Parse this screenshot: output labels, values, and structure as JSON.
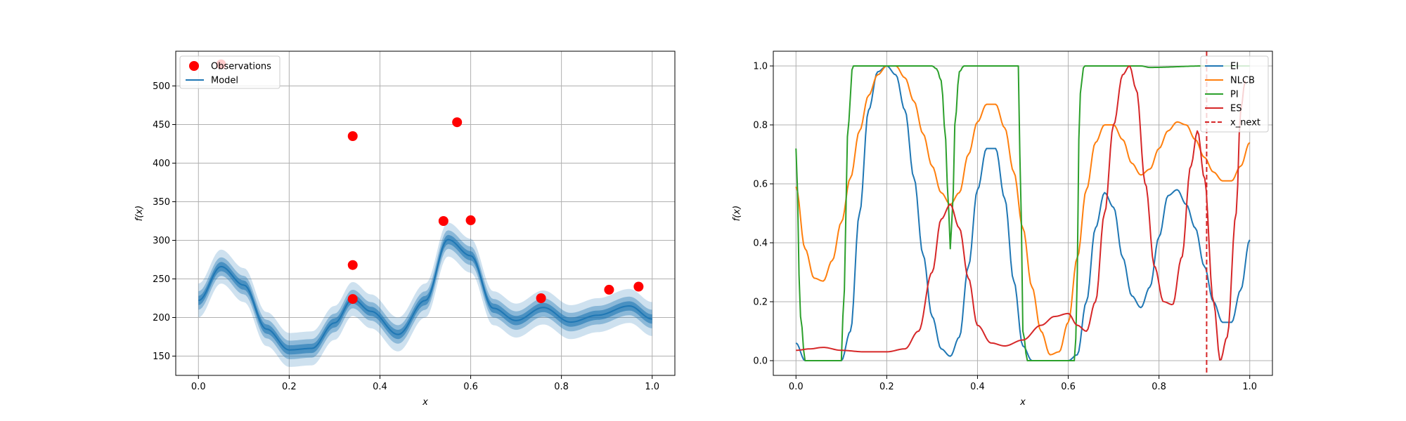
{
  "chart_data": [
    {
      "type": "line",
      "xlabel": "x",
      "ylabel": "f(x)",
      "xlim": [
        -0.05,
        1.05
      ],
      "ylim": [
        125,
        545
      ],
      "xticks": [
        "0.0",
        "0.2",
        "0.4",
        "0.6",
        "0.8",
        "1.0"
      ],
      "yticks": [
        "150",
        "200",
        "250",
        "300",
        "350",
        "400",
        "450",
        "500"
      ],
      "grid": true,
      "legend_placement": "top-left",
      "legend": [
        {
          "label": "Observations",
          "kind": "marker",
          "color": "#ff0000"
        },
        {
          "label": "Model",
          "kind": "line",
          "color": "#1f77b4"
        }
      ],
      "observations": {
        "x": [
          0.05,
          0.34,
          0.34,
          0.34,
          0.54,
          0.57,
          0.6,
          0.755,
          0.905,
          0.97
        ],
        "y": [
          528,
          435,
          268,
          224,
          325,
          453,
          326,
          225,
          236,
          240
        ]
      },
      "model": {
        "x": [
          0.0,
          0.05,
          0.1,
          0.15,
          0.2,
          0.25,
          0.3,
          0.34,
          0.38,
          0.44,
          0.5,
          0.55,
          0.6,
          0.65,
          0.7,
          0.76,
          0.82,
          0.88,
          0.95,
          1.0
        ],
        "mean": [
          222,
          266,
          242,
          185,
          158,
          160,
          193,
          224,
          208,
          178,
          222,
          301,
          280,
          212,
          196,
          213,
          194,
          203,
          215,
          198
        ],
        "band_widths": [
          6,
          12,
          22
        ]
      }
    },
    {
      "type": "line",
      "xlabel": "x",
      "ylabel": "f(x)",
      "xlim": [
        -0.05,
        1.05
      ],
      "ylim": [
        -0.05,
        1.05
      ],
      "xticks": [
        "0.0",
        "0.2",
        "0.4",
        "0.6",
        "0.8",
        "1.0"
      ],
      "yticks": [
        "0.0",
        "0.2",
        "0.4",
        "0.6",
        "0.8",
        "1.0"
      ],
      "grid": true,
      "legend_placement": "top-right",
      "series": [
        {
          "name": "EI",
          "color": "#1f77b4",
          "x": [
            0.0,
            0.02,
            0.04,
            0.06,
            0.08,
            0.1,
            0.12,
            0.14,
            0.16,
            0.18,
            0.2,
            0.22,
            0.24,
            0.26,
            0.28,
            0.3,
            0.32,
            0.34,
            0.36,
            0.38,
            0.4,
            0.42,
            0.44,
            0.46,
            0.48,
            0.5,
            0.52,
            0.54,
            0.56,
            0.58,
            0.6,
            0.62,
            0.64,
            0.66,
            0.68,
            0.7,
            0.72,
            0.74,
            0.76,
            0.78,
            0.8,
            0.82,
            0.84,
            0.86,
            0.88,
            0.9,
            0.92,
            0.94,
            0.96,
            0.98,
            1.0
          ],
          "y": [
            0.06,
            0.0,
            0.0,
            0.0,
            0.0,
            0.0,
            0.1,
            0.5,
            0.85,
            0.98,
            1.0,
            0.97,
            0.85,
            0.62,
            0.36,
            0.15,
            0.04,
            0.015,
            0.08,
            0.32,
            0.58,
            0.72,
            0.72,
            0.55,
            0.27,
            0.05,
            0.0,
            0.0,
            0.0,
            0.0,
            0.0,
            0.02,
            0.2,
            0.45,
            0.57,
            0.52,
            0.35,
            0.22,
            0.18,
            0.25,
            0.42,
            0.56,
            0.58,
            0.53,
            0.45,
            0.32,
            0.2,
            0.13,
            0.13,
            0.24,
            0.41
          ]
        },
        {
          "name": "NLCB",
          "color": "#ff7f0e",
          "x": [
            0.0,
            0.02,
            0.04,
            0.06,
            0.08,
            0.1,
            0.12,
            0.14,
            0.16,
            0.18,
            0.2,
            0.22,
            0.24,
            0.26,
            0.28,
            0.3,
            0.32,
            0.34,
            0.36,
            0.38,
            0.4,
            0.42,
            0.44,
            0.46,
            0.48,
            0.5,
            0.52,
            0.54,
            0.56,
            0.58,
            0.6,
            0.62,
            0.64,
            0.66,
            0.68,
            0.7,
            0.72,
            0.74,
            0.76,
            0.78,
            0.8,
            0.82,
            0.84,
            0.86,
            0.88,
            0.9,
            0.92,
            0.94,
            0.96,
            0.98,
            1.0
          ],
          "y": [
            0.59,
            0.38,
            0.28,
            0.27,
            0.34,
            0.47,
            0.62,
            0.78,
            0.9,
            0.97,
            1.0,
            1.0,
            0.96,
            0.88,
            0.77,
            0.66,
            0.57,
            0.53,
            0.57,
            0.7,
            0.81,
            0.87,
            0.87,
            0.79,
            0.64,
            0.45,
            0.25,
            0.1,
            0.02,
            0.03,
            0.13,
            0.35,
            0.58,
            0.74,
            0.8,
            0.8,
            0.75,
            0.67,
            0.63,
            0.65,
            0.72,
            0.78,
            0.81,
            0.8,
            0.75,
            0.69,
            0.64,
            0.61,
            0.61,
            0.66,
            0.74
          ]
        },
        {
          "name": "PI",
          "color": "#2ca02c",
          "x": [
            0.0,
            0.01,
            0.02,
            0.04,
            0.1,
            0.105,
            0.115,
            0.125,
            0.3,
            0.31,
            0.32,
            0.33,
            0.335,
            0.34,
            0.345,
            0.35,
            0.36,
            0.37,
            0.38,
            0.49,
            0.495,
            0.5,
            0.51,
            0.615,
            0.62,
            0.625,
            0.635,
            0.76,
            0.78,
            0.9,
            0.92,
            0.94,
            0.96,
            0.98,
            1.0
          ],
          "y": [
            0.72,
            0.15,
            0.0,
            0.0,
            0.0,
            0.2,
            0.8,
            1.0,
            1.0,
            0.99,
            0.95,
            0.75,
            0.55,
            0.38,
            0.5,
            0.8,
            0.98,
            1.0,
            1.0,
            1.0,
            0.6,
            0.1,
            0.0,
            0.0,
            0.3,
            0.9,
            1.0,
            1.0,
            0.995,
            1.0,
            1.0,
            1.0,
            1.0,
            1.0,
            1.0
          ]
        },
        {
          "name": "ES",
          "color": "#d62728",
          "x": [
            0.0,
            0.03,
            0.06,
            0.1,
            0.15,
            0.2,
            0.24,
            0.27,
            0.3,
            0.32,
            0.34,
            0.36,
            0.38,
            0.4,
            0.43,
            0.46,
            0.5,
            0.54,
            0.57,
            0.6,
            0.62,
            0.64,
            0.66,
            0.68,
            0.7,
            0.72,
            0.735,
            0.75,
            0.77,
            0.79,
            0.81,
            0.83,
            0.85,
            0.87,
            0.885,
            0.9,
            0.92,
            0.935,
            0.95,
            0.97,
            0.98,
            0.99
          ],
          "y": [
            0.035,
            0.04,
            0.045,
            0.035,
            0.03,
            0.03,
            0.04,
            0.1,
            0.3,
            0.48,
            0.53,
            0.45,
            0.28,
            0.12,
            0.06,
            0.05,
            0.07,
            0.12,
            0.15,
            0.16,
            0.12,
            0.1,
            0.2,
            0.5,
            0.8,
            0.97,
            1.0,
            0.92,
            0.6,
            0.32,
            0.2,
            0.19,
            0.35,
            0.66,
            0.78,
            0.62,
            0.2,
            0.0,
            0.08,
            0.5,
            0.85,
            0.95
          ]
        }
      ],
      "x_next": {
        "name": "x_next",
        "x": 0.905,
        "color": "#d62728"
      }
    }
  ]
}
